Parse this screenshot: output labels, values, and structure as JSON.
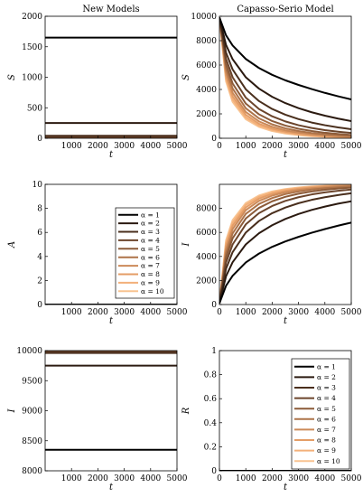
{
  "palette": [
    "#000000",
    "#2b1a10",
    "#4a2f1d",
    "#6b442b",
    "#8c5b39",
    "#ad7349",
    "#cc8a59",
    "#e49d66",
    "#f3b07a",
    "#f8c391"
  ],
  "chart_data": [
    {
      "type": "line",
      "title": "New Models",
      "xlabel": "t",
      "ylabel": "S",
      "xlim": [
        0,
        5000
      ],
      "ylim": [
        0,
        2000
      ],
      "xticks": [
        1000,
        2000,
        3000,
        4000,
        5000
      ],
      "yticks": [
        0,
        500,
        1000,
        1500,
        2000
      ],
      "x": [
        0,
        5000
      ],
      "series": [
        {
          "name": "α = 1",
          "values": [
            1650,
            1650
          ]
        },
        {
          "name": "α = 2",
          "values": [
            250,
            250
          ]
        },
        {
          "name": "α = 3",
          "values": [
            40,
            40
          ]
        },
        {
          "name": "α = 4",
          "values": [
            20,
            20
          ]
        },
        {
          "name": "α = 5",
          "values": [
            12,
            12
          ]
        },
        {
          "name": "α = 6",
          "values": [
            8,
            8
          ]
        },
        {
          "name": "α = 7",
          "values": [
            6,
            6
          ]
        },
        {
          "name": "α = 8",
          "values": [
            4,
            4
          ]
        },
        {
          "name": "α = 9",
          "values": [
            3,
            3
          ]
        },
        {
          "name": "α = 10",
          "values": [
            2,
            2
          ]
        }
      ]
    },
    {
      "type": "line",
      "title": "Capasso-Serio Model",
      "xlabel": "t",
      "ylabel": "S",
      "xlim": [
        0,
        5000
      ],
      "ylim": [
        0,
        10000
      ],
      "xticks": [
        0,
        1000,
        2000,
        3000,
        4000,
        5000
      ],
      "yticks": [
        0,
        2000,
        4000,
        6000,
        8000,
        10000
      ],
      "x": [
        0,
        250,
        500,
        1000,
        1500,
        2000,
        2500,
        3000,
        3500,
        4000,
        4500,
        5000
      ],
      "series": [
        {
          "name": "α = 1",
          "values": [
            9900,
            8440,
            7610,
            6500,
            5760,
            5200,
            4750,
            4370,
            4030,
            3720,
            3440,
            3180
          ]
        },
        {
          "name": "α = 2",
          "values": [
            9900,
            7650,
            6480,
            5000,
            4070,
            3400,
            2880,
            2470,
            2130,
            1850,
            1610,
            1410
          ]
        },
        {
          "name": "α = 3",
          "values": [
            9900,
            7030,
            5640,
            4010,
            3050,
            2400,
            1930,
            1570,
            1290,
            1070,
            890,
            740
          ]
        },
        {
          "name": "α = 4",
          "values": [
            9900,
            6520,
            5000,
            3330,
            2400,
            1800,
            1380,
            1070,
            840,
            670,
            540,
            430
          ]
        },
        {
          "name": "α = 5",
          "values": [
            9900,
            6090,
            4490,
            2840,
            1960,
            1410,
            1040,
            780,
            590,
            450,
            350,
            270
          ]
        },
        {
          "name": "α = 6",
          "values": [
            9900,
            5730,
            4080,
            2460,
            1630,
            1140,
            810,
            590,
            430,
            320,
            240,
            180
          ]
        },
        {
          "name": "α = 7",
          "values": [
            9900,
            5410,
            3730,
            2150,
            1380,
            940,
            650,
            460,
            330,
            240,
            170,
            130
          ]
        },
        {
          "name": "α = 8",
          "values": [
            9900,
            5140,
            3440,
            1920,
            1190,
            790,
            540,
            370,
            260,
            180,
            130,
            90
          ]
        },
        {
          "name": "α = 9",
          "values": [
            9900,
            4890,
            3190,
            1720,
            1040,
            680,
            450,
            310,
            210,
            140,
            100,
            70
          ]
        },
        {
          "name": "α = 10",
          "values": [
            9900,
            4670,
            2980,
            1560,
            930,
            590,
            390,
            260,
            170,
            120,
            80,
            50
          ]
        }
      ]
    },
    {
      "type": "line",
      "title": "",
      "xlabel": "t",
      "ylabel": "A",
      "xlim": [
        0,
        5000
      ],
      "ylim": [
        0,
        10
      ],
      "xticks": [
        1000,
        2000,
        3000,
        4000,
        5000
      ],
      "yticks": [
        0,
        2,
        4,
        6,
        8,
        10
      ],
      "legend": "right",
      "x": [
        0,
        5000
      ],
      "series": [
        {
          "name": "α = 1",
          "values": [
            0,
            0
          ]
        },
        {
          "name": "α = 2",
          "values": [
            0,
            0
          ]
        },
        {
          "name": "α = 3",
          "values": [
            0,
            0
          ]
        },
        {
          "name": "α = 4",
          "values": [
            0,
            0
          ]
        },
        {
          "name": "α = 5",
          "values": [
            0,
            0
          ]
        },
        {
          "name": "α = 6",
          "values": [
            0,
            0
          ]
        },
        {
          "name": "α = 7",
          "values": [
            0,
            0
          ]
        },
        {
          "name": "α = 8",
          "values": [
            0,
            0
          ]
        },
        {
          "name": "α = 9",
          "values": [
            0,
            0
          ]
        },
        {
          "name": "α = 10",
          "values": [
            0,
            0
          ]
        }
      ]
    },
    {
      "type": "line",
      "title": "",
      "xlabel": "t",
      "ylabel": "I",
      "xlim": [
        0,
        5000
      ],
      "ylim": [
        0,
        10000
      ],
      "xticks": [
        0,
        1000,
        2000,
        3000,
        4000,
        5000
      ],
      "yticks": [
        0,
        2000,
        4000,
        6000,
        8000
      ],
      "x": [
        0,
        250,
        500,
        1000,
        1500,
        2000,
        2500,
        3000,
        3500,
        4000,
        4500,
        5000
      ],
      "series": [
        {
          "name": "α = 1",
          "values": [
            100,
            1560,
            2390,
            3500,
            4240,
            4800,
            5250,
            5630,
            5970,
            6280,
            6560,
            6820
          ]
        },
        {
          "name": "α = 2",
          "values": [
            100,
            2350,
            3520,
            5000,
            5930,
            6600,
            7120,
            7530,
            7870,
            8150,
            8390,
            8590
          ]
        },
        {
          "name": "α = 3",
          "values": [
            100,
            2970,
            4360,
            5990,
            6950,
            7600,
            8070,
            8430,
            8710,
            8930,
            9110,
            9260
          ]
        },
        {
          "name": "α = 4",
          "values": [
            100,
            3480,
            5000,
            6670,
            7600,
            8200,
            8620,
            8930,
            9160,
            9330,
            9460,
            9570
          ]
        },
        {
          "name": "α = 5",
          "values": [
            100,
            3910,
            5510,
            7160,
            8040,
            8590,
            8960,
            9220,
            9410,
            9550,
            9650,
            9730
          ]
        },
        {
          "name": "α = 6",
          "values": [
            100,
            4270,
            5920,
            7540,
            8370,
            8860,
            9190,
            9410,
            9570,
            9680,
            9760,
            9820
          ]
        },
        {
          "name": "α = 7",
          "values": [
            100,
            4590,
            6270,
            7850,
            8620,
            9060,
            9350,
            9540,
            9670,
            9760,
            9830,
            9870
          ]
        },
        {
          "name": "α = 8",
          "values": [
            100,
            4860,
            6560,
            8080,
            8810,
            9210,
            9460,
            9630,
            9740,
            9820,
            9870,
            9910
          ]
        },
        {
          "name": "α = 9",
          "values": [
            100,
            5110,
            6810,
            8280,
            8960,
            9320,
            9550,
            9690,
            9790,
            9860,
            9900,
            9930
          ]
        },
        {
          "name": "α = 10",
          "values": [
            100,
            5330,
            7020,
            8440,
            9070,
            9410,
            9610,
            9740,
            9830,
            9880,
            9920,
            9950
          ]
        }
      ]
    },
    {
      "type": "line",
      "title": "",
      "xlabel": "t",
      "ylabel": "I",
      "xlim": [
        0,
        5000
      ],
      "ylim": [
        8000,
        10000
      ],
      "xticks": [
        1000,
        2000,
        3000,
        4000,
        5000
      ],
      "yticks": [
        8000,
        8500,
        9000,
        9500,
        10000
      ],
      "x": [
        0,
        5000
      ],
      "series": [
        {
          "name": "α = 1",
          "values": [
            8350,
            8350
          ]
        },
        {
          "name": "α = 2",
          "values": [
            9750,
            9750
          ]
        },
        {
          "name": "α = 3",
          "values": [
            9960,
            9960
          ]
        },
        {
          "name": "α = 4",
          "values": [
            9980,
            9980
          ]
        },
        {
          "name": "α = 5",
          "values": [
            9988,
            9988
          ]
        },
        {
          "name": "α = 6",
          "values": [
            9992,
            9992
          ]
        },
        {
          "name": "α = 7",
          "values": [
            9994,
            9994
          ]
        },
        {
          "name": "α = 8",
          "values": [
            9996,
            9996
          ]
        },
        {
          "name": "α = 9",
          "values": [
            9997,
            9997
          ]
        },
        {
          "name": "α = 10",
          "values": [
            9998,
            9998
          ]
        }
      ]
    },
    {
      "type": "line",
      "title": "",
      "xlabel": "t",
      "ylabel": "R",
      "xlim": [
        0,
        5000
      ],
      "ylim": [
        0,
        1
      ],
      "xticks": [
        0,
        1000,
        2000,
        3000,
        4000,
        5000
      ],
      "yticks": [
        0,
        0.2,
        0.4,
        0.6,
        0.8,
        1
      ],
      "legend": "right",
      "x": [
        0,
        5000
      ],
      "series": [
        {
          "name": "α = 1",
          "values": [
            0,
            0
          ]
        },
        {
          "name": "α = 2",
          "values": [
            0,
            0
          ]
        },
        {
          "name": "α = 3",
          "values": [
            0,
            0
          ]
        },
        {
          "name": "α = 4",
          "values": [
            0,
            0
          ]
        },
        {
          "name": "α = 5",
          "values": [
            0,
            0
          ]
        },
        {
          "name": "α = 6",
          "values": [
            0,
            0
          ]
        },
        {
          "name": "α = 7",
          "values": [
            0,
            0
          ]
        },
        {
          "name": "α = 8",
          "values": [
            0,
            0
          ]
        },
        {
          "name": "α = 9",
          "values": [
            0,
            0
          ]
        },
        {
          "name": "α = 10",
          "values": [
            0,
            0
          ]
        }
      ]
    }
  ]
}
